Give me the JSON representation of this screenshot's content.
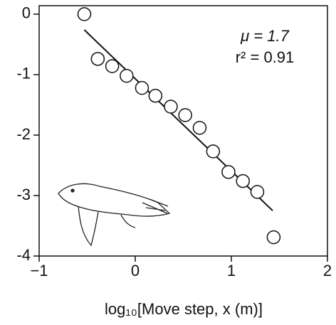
{
  "chart_data": {
    "type": "scatter",
    "xlabel": "log₁₀[Move step, x (m)]",
    "annotations": [
      "μ = 1.7",
      "r² = 0.91"
    ],
    "xlim": [
      -1,
      2
    ],
    "ylim": [
      -4,
      0.14
    ],
    "xticks": [
      {
        "value": -1,
        "label": "−1"
      },
      0,
      1,
      2
    ],
    "yticks": [
      0,
      -1,
      -2,
      -3,
      -4
    ],
    "series": [
      {
        "color": "#111111",
        "x": [
          -0.53,
          -0.39,
          -0.24,
          -0.09,
          0.07,
          0.21,
          0.37,
          0.52,
          0.67,
          0.81,
          0.97,
          1.12,
          1.27,
          1.44
        ],
        "values": [
          0,
          -0.74,
          -0.86,
          -1.02,
          -1.22,
          -1.35,
          -1.53,
          -1.67,
          -1.88,
          -2.27,
          -2.61,
          -2.76,
          -2.94,
          -3.69
        ]
      }
    ],
    "fit": {
      "x": [
        -0.53,
        1.43
      ],
      "values": [
        -0.26,
        -3.25
      ]
    }
  }
}
